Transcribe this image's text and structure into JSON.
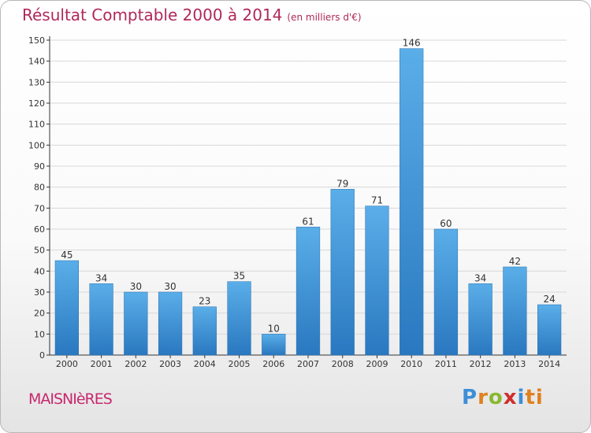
{
  "title": "Résultat Comptable 2000 à 2014",
  "unit_note": "(en milliers d'€)",
  "town": "MAISNIèRES",
  "logo": {
    "letters": [
      "P",
      "r",
      "o",
      "x",
      "i",
      "ti"
    ],
    "colors": [
      "#3d8ed8",
      "#e0801e",
      "#8ab82e",
      "#d02e2e",
      "#3d8ed8",
      "#e0801e"
    ]
  },
  "colors": {
    "title": "#b0285a",
    "bar_top": "#5aaee8",
    "bar_bottom": "#2a78c0",
    "grid": "#d8d8d8"
  },
  "chart_data": {
    "type": "bar",
    "categories": [
      "2000",
      "2001",
      "2002",
      "2003",
      "2004",
      "2005",
      "2006",
      "2007",
      "2008",
      "2009",
      "2010",
      "2011",
      "2012",
      "2013",
      "2014"
    ],
    "values": [
      45,
      34,
      30,
      30,
      23,
      35,
      10,
      61,
      79,
      71,
      146,
      60,
      34,
      42,
      24
    ],
    "yticks": [
      0,
      10,
      20,
      30,
      40,
      50,
      60,
      70,
      80,
      90,
      100,
      110,
      120,
      130,
      140,
      150
    ],
    "ylim": [
      0,
      150
    ],
    "grid": true,
    "data_labels": true
  }
}
